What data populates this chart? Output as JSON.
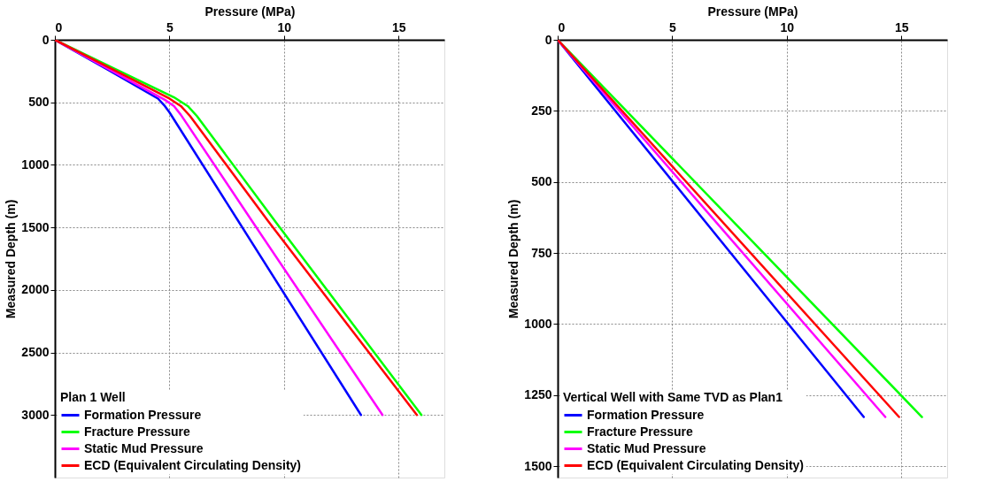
{
  "chart_data": [
    {
      "type": "line",
      "xlabel": "Pressure (MPa)",
      "ylabel": "Measured Depth (m)",
      "legend_title": "Plan 1 Well",
      "legend": "bottom left",
      "grid": true,
      "line_style": "solid",
      "marker": "none",
      "xlim": [
        0,
        17
      ],
      "xticks": [
        0,
        5,
        10,
        15
      ],
      "ylim": [
        3500,
        0
      ],
      "yticks": [
        0,
        500,
        1000,
        1500,
        2000,
        2500,
        3000
      ],
      "series": [
        {
          "name": "Formation Pressure",
          "color": "#0000ff",
          "x": [
            0,
            2.3,
            4.5,
            4.8,
            5.0,
            8.0,
            13.36
          ],
          "values": [
            0,
            238,
            470,
            530,
            580,
            1448,
            3000
          ]
        },
        {
          "name": "Fracture Pressure",
          "color": "#00ff00",
          "x": [
            0,
            2.6,
            5.2,
            5.8,
            6.2,
            9.6,
            16.0
          ],
          "values": [
            0,
            230,
            460,
            530,
            610,
            1448,
            3000
          ]
        },
        {
          "name": "Static Mud Pressure",
          "color": "#ff00ff",
          "x": [
            0,
            2.4,
            4.8,
            5.2,
            5.5,
            8.6,
            14.3
          ],
          "values": [
            0,
            240,
            480,
            530,
            600,
            1448,
            3000
          ]
        },
        {
          "name": "ECD (Equivalent Circulating Density)",
          "color": "#ff0000",
          "x": [
            0,
            2.5,
            5.0,
            5.5,
            5.9,
            9.3,
            15.8
          ],
          "values": [
            0,
            235,
            470,
            530,
            610,
            1448,
            3000
          ]
        }
      ]
    },
    {
      "type": "line",
      "xlabel": "Pressure (MPa)",
      "ylabel": "Measured Depth (m)",
      "legend_title": "Vertical Well with Same TVD as Plan1",
      "legend": "bottom left",
      "grid": true,
      "line_style": "solid",
      "marker": "none",
      "xlim": [
        0,
        17
      ],
      "xticks": [
        0,
        5,
        10,
        15
      ],
      "ylim": [
        1540,
        0
      ],
      "yticks": [
        0,
        250,
        500,
        750,
        1000,
        1250,
        1500
      ],
      "series": [
        {
          "name": "Formation Pressure",
          "color": "#0000ff",
          "x": [
            0,
            13.36
          ],
          "values": [
            0,
            1327
          ]
        },
        {
          "name": "Fracture Pressure",
          "color": "#00ff00",
          "x": [
            0,
            15.9
          ],
          "values": [
            0,
            1327
          ]
        },
        {
          "name": "Static Mud Pressure",
          "color": "#ff00ff",
          "x": [
            0,
            14.3
          ],
          "values": [
            0,
            1327
          ]
        },
        {
          "name": "ECD (Equivalent Circulating Density)",
          "color": "#ff0000",
          "x": [
            0,
            14.9
          ],
          "values": [
            0,
            1327
          ]
        }
      ]
    }
  ]
}
